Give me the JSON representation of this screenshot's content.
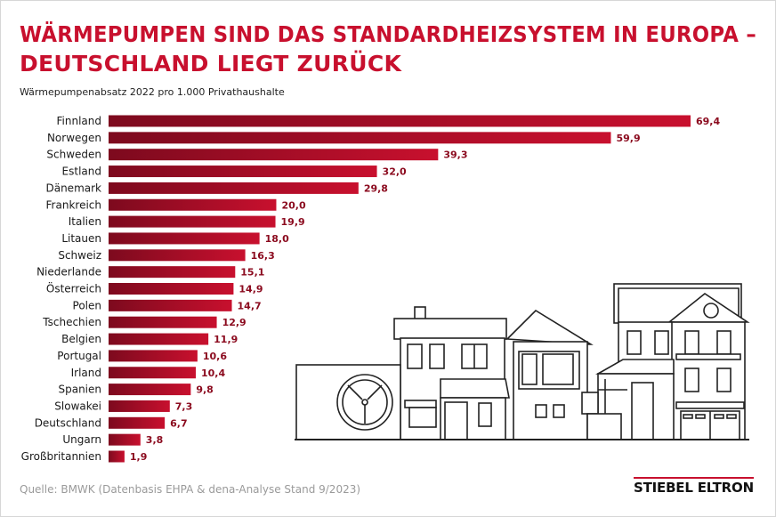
{
  "title_line1": "WÄRMEPUMPEN SIND DAS STANDARDHEIZSYSTEM IN EUROPA –",
  "title_line2": "DEUTSCHLAND LIEGT ZURÜCK",
  "subtitle": "Wärmepumpenabsatz 2022 pro 1.000 Privathaushalte",
  "source": "Quelle: BMWK (Datenbasis EHPA & dena-Analyse Stand 9/2023)",
  "logo_text": "STIEBEL ELTRON",
  "colors": {
    "title": "#c8102e",
    "bar_light": "#c8102e",
    "bar_dark": "#7d0a1e",
    "value_label": "#8b0a1e",
    "source": "#9a9a9a"
  },
  "chart_data": {
    "type": "bar",
    "orientation": "horizontal",
    "categories": [
      "Finnland",
      "Norwegen",
      "Schweden",
      "Estland",
      "Dänemark",
      "Frankreich",
      "Italien",
      "Litauen",
      "Schweiz",
      "Niederlande",
      "Österreich",
      "Polen",
      "Tschechien",
      "Belgien",
      "Portugal",
      "Irland",
      "Spanien",
      "Slowakei",
      "Deutschland",
      "Ungarn",
      "Großbritannien"
    ],
    "values": [
      69.4,
      59.9,
      39.3,
      32.0,
      29.8,
      20.0,
      19.9,
      18.0,
      16.3,
      15.1,
      14.9,
      14.7,
      12.9,
      11.9,
      10.6,
      10.4,
      9.8,
      7.3,
      6.7,
      3.8,
      1.9
    ],
    "value_labels": [
      "69,4",
      "59,9",
      "39,3",
      "32,0",
      "29,8",
      "20,0",
      "19,9",
      "18,0",
      "16,3",
      "15,1",
      "14,9",
      "14,7",
      "12,9",
      "11,9",
      "10,6",
      "10,4",
      "9,8",
      "7,3",
      "6,7",
      "3,8",
      "1,9"
    ],
    "title": "WÄRMEPUMPEN SIND DAS STANDARDHEIZSYSTEM IN EUROPA – DEUTSCHLAND LIEGT ZURÜCK",
    "subtitle": "Wärmepumpenabsatz 2022 pro 1.000 Privathaushalte",
    "xlim": [
      0,
      69.4
    ],
    "grid": false,
    "legend": "none"
  }
}
